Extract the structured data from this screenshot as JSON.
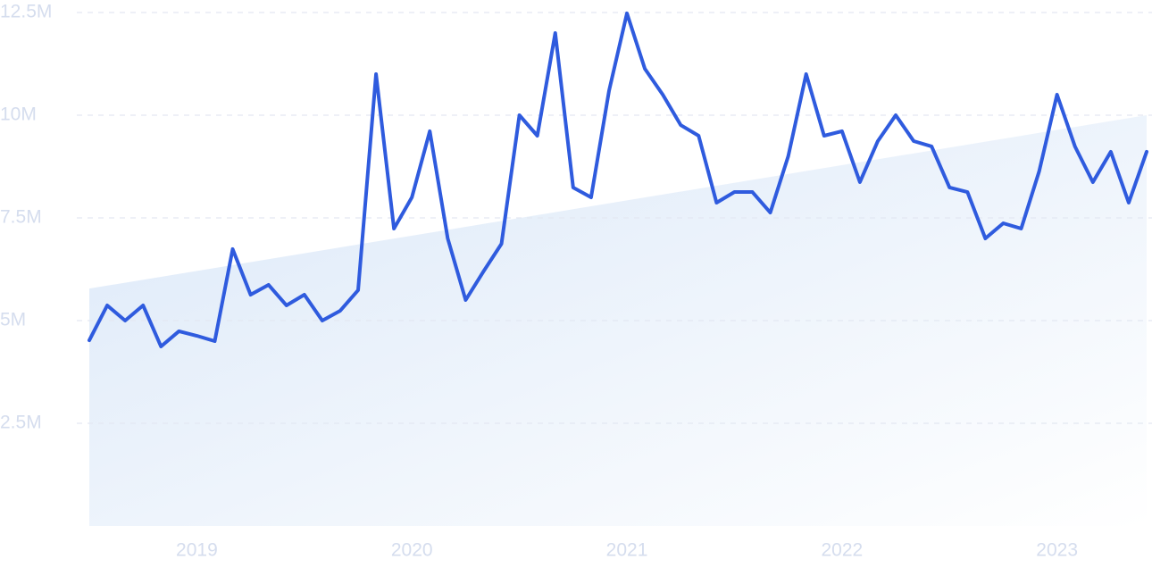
{
  "chart_data": {
    "type": "line",
    "categories": [
      null,
      null,
      null,
      null,
      null,
      null,
      "2019",
      null,
      null,
      null,
      null,
      null,
      null,
      null,
      null,
      null,
      null,
      null,
      "2020",
      null,
      null,
      null,
      null,
      null,
      null,
      null,
      null,
      null,
      null,
      null,
      "2021",
      null,
      null,
      null,
      null,
      null,
      null,
      null,
      null,
      null,
      null,
      null,
      "2022",
      null,
      null,
      null,
      null,
      null,
      null,
      null,
      null,
      null,
      null,
      null,
      "2023",
      null,
      null,
      null,
      null,
      null
    ],
    "series": [
      {
        "color": "#2f5bde",
        "values": [
          4520000,
          5370000,
          5000000,
          5370000,
          4370000,
          4740000,
          4630000,
          4500000,
          6740000,
          5630000,
          5870000,
          5370000,
          5630000,
          5000000,
          5240000,
          5740000,
          11000000,
          7240000,
          8000000,
          9610000,
          7000000,
          5500000,
          6200000,
          6870000,
          10000000,
          9500000,
          12000000,
          8240000,
          8000000,
          10590000,
          12480000,
          11130000,
          10500000,
          9760000,
          9500000,
          7870000,
          8130000,
          8130000,
          7630000,
          9000000,
          11000000,
          9500000,
          9610000,
          8370000,
          9370000,
          10000000,
          9370000,
          9240000,
          8240000,
          8130000,
          7000000,
          7370000,
          7240000,
          8630000,
          10500000,
          9240000,
          8370000,
          9110000,
          7870000,
          9110000
        ]
      }
    ],
    "trend": [
      5780000,
      10000000
    ],
    "trend_color": "#dbe8f8",
    "ylim": [
      0,
      12500000
    ],
    "yticks": [
      {
        "value": 2500000,
        "label": "2.5M"
      },
      {
        "value": 5000000,
        "label": "5M"
      },
      {
        "value": 7500000,
        "label": "7.5M"
      },
      {
        "value": 10000000,
        "label": "10M"
      },
      {
        "value": 12500000,
        "label": "12.5M"
      }
    ],
    "grid": true
  }
}
